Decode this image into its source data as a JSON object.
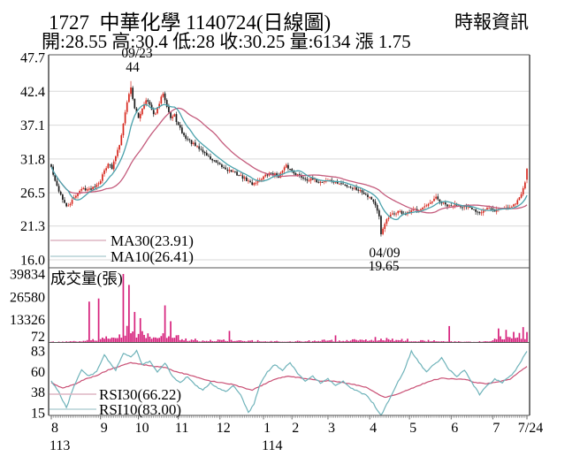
{
  "header": {
    "title": "1727  中華化學 1140724(日線圖)",
    "source": "時報資訊",
    "quote_line": "開:28.55 高:30.4 低:28 收:30.25 量:6134 漲 1.75",
    "quote": {
      "open": 28.55,
      "high": 30.4,
      "low": 28,
      "close": 30.25,
      "volume": 6134,
      "change": 1.75
    }
  },
  "colors": {
    "candle_up": "#d7281e",
    "candle_down": "#1a1a1a",
    "ma10_line": "#4aa2ac",
    "ma30_line": "#c45b7c",
    "ma10_text": "#1d86a0",
    "ma30_text": "#c5245a",
    "volume_bar": "#d6217c",
    "volume_text": "#cc2288",
    "rsi10_line": "#6fb3ba",
    "rsi30_line": "#c94f74",
    "swatch_pink": "#ddb6c3",
    "swatch_teal": "#b5d2d6",
    "frame": "#555555",
    "grid": "#d9d9d9"
  },
  "x_axis": {
    "total_days": 252,
    "months": [
      {
        "label": "8",
        "day": 0
      },
      {
        "label": "9",
        "day": 26
      },
      {
        "label": "10",
        "day": 46
      },
      {
        "label": "11",
        "day": 67
      },
      {
        "label": "12",
        "day": 89
      },
      {
        "label": "1",
        "day": 112
      },
      {
        "label": "2",
        "day": 127
      },
      {
        "label": "3",
        "day": 146
      },
      {
        "label": "4",
        "day": 168
      },
      {
        "label": "5",
        "day": 189
      },
      {
        "label": "6",
        "day": 211
      },
      {
        "label": "7",
        "day": 233
      },
      {
        "label": "7/24",
        "day": 251
      }
    ],
    "year_labels": [
      {
        "label": "113",
        "day": 0
      },
      {
        "label": "114",
        "day": 112
      }
    ]
  },
  "chart_data": [
    {
      "type": "candlestick",
      "ylim": [
        16.0,
        47.7
      ],
      "y_ticks": [
        47.7,
        42.4,
        37.1,
        31.8,
        26.5,
        21.3,
        16.0
      ],
      "legend": [
        {
          "label": "MA30(23.91)",
          "window": 30
        },
        {
          "label": "MA10(26.41)",
          "window": 10
        }
      ],
      "annotations": [
        {
          "line1": "09/23",
          "line2": "44",
          "day": 42
        },
        {
          "line1": "04/09",
          "line2": "19.65",
          "day": 174
        }
      ],
      "anchors": {
        "peak_day": 42,
        "peak_high": 44,
        "trough_day": 174,
        "trough_low": 19.65,
        "last_day": {
          "open": 28.55,
          "high": 30.4,
          "low": 28,
          "close": 30.25
        }
      },
      "close_keypoints": [
        [
          0,
          30.5
        ],
        [
          2,
          28.2
        ],
        [
          5,
          26.2
        ],
        [
          8,
          24.2
        ],
        [
          11,
          25.2
        ],
        [
          14,
          26.6
        ],
        [
          17,
          27.2
        ],
        [
          20,
          27.0
        ],
        [
          23,
          27.6
        ],
        [
          26,
          28.5
        ],
        [
          28,
          30.0
        ],
        [
          30,
          31.2
        ],
        [
          32,
          30.2
        ],
        [
          34,
          32.3
        ],
        [
          36,
          34.2
        ],
        [
          38,
          37.3
        ],
        [
          40,
          40.8
        ],
        [
          42,
          43.0
        ],
        [
          44,
          39.6
        ],
        [
          46,
          38.2
        ],
        [
          48,
          39.8
        ],
        [
          50,
          41.2
        ],
        [
          52,
          40.2
        ],
        [
          54,
          38.6
        ],
        [
          56,
          39.6
        ],
        [
          59,
          42.2
        ],
        [
          61,
          40.2
        ],
        [
          63,
          38.2
        ],
        [
          65,
          38.6
        ],
        [
          67,
          37.0
        ],
        [
          70,
          35.4
        ],
        [
          73,
          34.6
        ],
        [
          76,
          33.8
        ],
        [
          79,
          33.2
        ],
        [
          82,
          32.4
        ],
        [
          85,
          31.6
        ],
        [
          88,
          30.9
        ],
        [
          91,
          30.4
        ],
        [
          94,
          30.0
        ],
        [
          97,
          29.6
        ],
        [
          100,
          29.1
        ],
        [
          103,
          28.5
        ],
        [
          106,
          27.9
        ],
        [
          109,
          28.4
        ],
        [
          112,
          29.0
        ],
        [
          116,
          29.6
        ],
        [
          120,
          29.1
        ],
        [
          124,
          30.7
        ],
        [
          127,
          29.9
        ],
        [
          130,
          29.3
        ],
        [
          134,
          28.7
        ],
        [
          138,
          28.5
        ],
        [
          142,
          28.2
        ],
        [
          146,
          28.5
        ],
        [
          150,
          28.1
        ],
        [
          154,
          27.8
        ],
        [
          158,
          27.4
        ],
        [
          162,
          27.0
        ],
        [
          166,
          26.3
        ],
        [
          169,
          25.6
        ],
        [
          171,
          24.6
        ],
        [
          173,
          22.6
        ],
        [
          174,
          20.0
        ],
        [
          176,
          21.8
        ],
        [
          179,
          22.9
        ],
        [
          183,
          23.6
        ],
        [
          187,
          23.1
        ],
        [
          191,
          23.7
        ],
        [
          195,
          24.1
        ],
        [
          199,
          24.5
        ],
        [
          203,
          25.7
        ],
        [
          206,
          24.9
        ],
        [
          210,
          24.3
        ],
        [
          214,
          24.7
        ],
        [
          218,
          24.3
        ],
        [
          222,
          23.9
        ],
        [
          226,
          23.5
        ],
        [
          230,
          24.1
        ],
        [
          234,
          23.7
        ],
        [
          238,
          24.1
        ],
        [
          242,
          24.3
        ],
        [
          245,
          24.9
        ],
        [
          248,
          26.2
        ],
        [
          250,
          28.3
        ],
        [
          251,
          30.25
        ]
      ]
    },
    {
      "type": "bar",
      "label": "成交量(張)",
      "y_ticks": [
        39834,
        26580,
        13326,
        72
      ],
      "envelope_keypoints": [
        [
          0,
          900
        ],
        [
          14,
          1200
        ],
        [
          24,
          3000
        ],
        [
          34,
          6500
        ],
        [
          40,
          9500
        ],
        [
          46,
          8000
        ],
        [
          54,
          6000
        ],
        [
          62,
          6500
        ],
        [
          68,
          3200
        ],
        [
          78,
          1800
        ],
        [
          90,
          2400
        ],
        [
          100,
          1600
        ],
        [
          112,
          1500
        ],
        [
          122,
          1300
        ],
        [
          134,
          1400
        ],
        [
          146,
          1900
        ],
        [
          156,
          1700
        ],
        [
          166,
          2600
        ],
        [
          174,
          3200
        ],
        [
          182,
          2400
        ],
        [
          194,
          1400
        ],
        [
          204,
          2000
        ],
        [
          212,
          1200
        ],
        [
          222,
          1000
        ],
        [
          230,
          1400
        ],
        [
          236,
          3800
        ],
        [
          244,
          4200
        ],
        [
          251,
          6000
        ]
      ],
      "spikes": {
        "20": 23800,
        "25": 25600,
        "38": 39834,
        "41": 33500,
        "44": 17800,
        "47": 14200,
        "60": 21600,
        "63": 12400,
        "94": 6800,
        "150": 4200,
        "210": 9600,
        "236": 8200,
        "240": 7400,
        "244": 6200,
        "247": 5600,
        "249": 9000,
        "251": 6134
      }
    },
    {
      "type": "line",
      "y_ticks": [
        83,
        60,
        38,
        15
      ],
      "series": [
        {
          "label": "RSI30(66.22)",
          "keypoints": [
            [
              0,
              48
            ],
            [
              6,
              42
            ],
            [
              12,
              46
            ],
            [
              18,
              52
            ],
            [
              24,
              56
            ],
            [
              30,
              62
            ],
            [
              36,
              66
            ],
            [
              42,
              70
            ],
            [
              48,
              68
            ],
            [
              54,
              66
            ],
            [
              60,
              65
            ],
            [
              66,
              60
            ],
            [
              72,
              57
            ],
            [
              78,
              53
            ],
            [
              84,
              50
            ],
            [
              90,
              48
            ],
            [
              96,
              46
            ],
            [
              102,
              42
            ],
            [
              106,
              40
            ],
            [
              112,
              46
            ],
            [
              118,
              52
            ],
            [
              124,
              55
            ],
            [
              130,
              54
            ],
            [
              136,
              52
            ],
            [
              142,
              50
            ],
            [
              148,
              50
            ],
            [
              154,
              48
            ],
            [
              160,
              46
            ],
            [
              166,
              43
            ],
            [
              172,
              36
            ],
            [
              176,
              32
            ],
            [
              182,
              35
            ],
            [
              188,
              40
            ],
            [
              194,
              45
            ],
            [
              200,
              50
            ],
            [
              206,
              53
            ],
            [
              212,
              52
            ],
            [
              218,
              52
            ],
            [
              224,
              48
            ],
            [
              230,
              47
            ],
            [
              236,
              49
            ],
            [
              242,
              52
            ],
            [
              246,
              58
            ],
            [
              251,
              66.22
            ]
          ]
        },
        {
          "label": "RSI10(83.00)",
          "keypoints": [
            [
              0,
              50
            ],
            [
              4,
              38
            ],
            [
              8,
              20
            ],
            [
              12,
              45
            ],
            [
              16,
              62
            ],
            [
              20,
              55
            ],
            [
              24,
              60
            ],
            [
              28,
              78
            ],
            [
              31,
              70
            ],
            [
              34,
              62
            ],
            [
              38,
              80
            ],
            [
              42,
              76
            ],
            [
              45,
              83
            ],
            [
              48,
              68
            ],
            [
              52,
              72
            ],
            [
              56,
              60
            ],
            [
              60,
              70
            ],
            [
              64,
              55
            ],
            [
              68,
              48
            ],
            [
              72,
              55
            ],
            [
              76,
              45
            ],
            [
              80,
              40
            ],
            [
              84,
              48
            ],
            [
              88,
              42
            ],
            [
              92,
              38
            ],
            [
              96,
              45
            ],
            [
              100,
              35
            ],
            [
              104,
              15
            ],
            [
              107,
              25
            ],
            [
              110,
              45
            ],
            [
              114,
              60
            ],
            [
              118,
              68
            ],
            [
              122,
              62
            ],
            [
              126,
              70
            ],
            [
              130,
              58
            ],
            [
              134,
              50
            ],
            [
              138,
              55
            ],
            [
              142,
              48
            ],
            [
              146,
              52
            ],
            [
              150,
              45
            ],
            [
              154,
              50
            ],
            [
              158,
              42
            ],
            [
              162,
              38
            ],
            [
              166,
              35
            ],
            [
              170,
              25
            ],
            [
              174,
              12
            ],
            [
              178,
              28
            ],
            [
              182,
              45
            ],
            [
              186,
              60
            ],
            [
              190,
              83
            ],
            [
              194,
              70
            ],
            [
              198,
              60
            ],
            [
              202,
              68
            ],
            [
              206,
              75
            ],
            [
              210,
              62
            ],
            [
              214,
              55
            ],
            [
              218,
              62
            ],
            [
              222,
              48
            ],
            [
              226,
              35
            ],
            [
              230,
              45
            ],
            [
              234,
              52
            ],
            [
              238,
              48
            ],
            [
              242,
              55
            ],
            [
              245,
              62
            ],
            [
              248,
              72
            ],
            [
              251,
              83
            ]
          ]
        }
      ]
    }
  ]
}
